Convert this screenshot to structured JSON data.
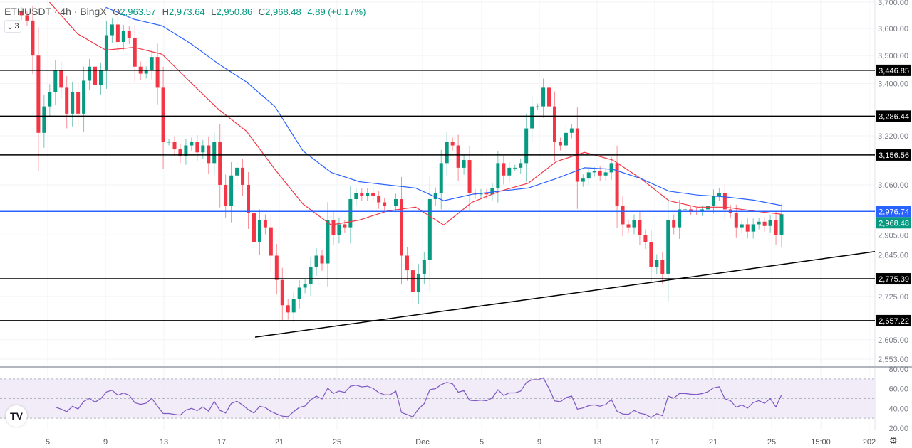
{
  "header": {
    "symbol": "ETHUSDT · 4h · BingX",
    "open_label": "O",
    "open": "2,963.57",
    "high_label": "H",
    "high": "2,973.64",
    "low_label": "L",
    "low": "2,950.86",
    "close_label": "C",
    "close": "2,968.48",
    "change": "4.89 (+0.17%)",
    "indicator_count": "3"
  },
  "colors": {
    "up": "#089981",
    "down": "#f23645",
    "ma_fast": "#f23645",
    "ma_slow": "#2962ff",
    "rsi": "#7e57c2",
    "rsi_band": "#ede7f6",
    "level": "#000000",
    "last_price": "#089981",
    "ma_price": "#2962ff"
  },
  "chart_data": {
    "type": "candlestick",
    "scale": "log",
    "ylim": [
      2553,
      3700
    ],
    "price_ticks": [
      "3,700.00",
      "3,600.00",
      "3,500.00",
      "3,400.00",
      "3,220.00",
      "3,060.00",
      "2,905.00",
      "2,845.00",
      "2,725.00",
      "2,605.00",
      "2,553.00"
    ],
    "price_tick_values": [
      3700,
      3600,
      3500,
      3400,
      3220,
      3060,
      2905,
      2845,
      2725,
      2605,
      2553
    ],
    "time_ticks": [
      "5",
      "9",
      "13",
      "17",
      "21",
      "25",
      "Dec",
      "5",
      "9",
      "13",
      "17",
      "21",
      "25",
      "15:00",
      "202"
    ],
    "closes": [
      3650,
      3630,
      3500,
      3230,
      3320,
      3370,
      3447,
      3385,
      3295,
      3370,
      3295,
      3410,
      3460,
      3395,
      3447,
      3575,
      3615,
      3550,
      3590,
      3565,
      3460,
      3435,
      3447,
      3495,
      3385,
      3200,
      3200,
      3175,
      3152,
      3188,
      3200,
      3165,
      3188,
      3130,
      3200,
      3060,
      2995,
      3090,
      3115,
      3060,
      2972,
      2884,
      2950,
      2928,
      2843,
      2772,
      2700,
      2680,
      2717,
      2750,
      2760,
      2810,
      2843,
      2820,
      2950,
      2905,
      2937,
      2928,
      3015,
      3035,
      3025,
      3035,
      3025,
      3005,
      2995,
      2995,
      3015,
      2843,
      2800,
      2738,
      2790,
      2830,
      3015,
      3035,
      3130,
      3200,
      3188,
      3115,
      3140,
      3035,
      3030,
      3035,
      3030,
      3050,
      3130,
      3090,
      3115,
      3115,
      3130,
      3245,
      3320,
      3320,
      3385,
      3320,
      3200,
      3188,
      3230,
      3245,
      3070,
      3080,
      3100,
      3105,
      3090,
      3100,
      3130,
      2995,
      2937,
      2928,
      2950,
      2905,
      2884,
      2810,
      2830,
      2790,
      2950,
      2928,
      2983,
      2983,
      2978,
      2977,
      2983,
      2995,
      3025,
      3035,
      2983,
      2972,
      2928,
      2937,
      2915,
      2937,
      2945,
      2932,
      2950,
      2905,
      2968
    ],
    "ma_fast": [
      null,
      3700,
      3580,
      3520,
      3530,
      3505,
      3405,
      3310,
      3235,
      3110,
      3000,
      2935,
      2950,
      2978,
      2990,
      2935,
      3005,
      3040,
      3065,
      3135,
      3165,
      3140,
      3080,
      3010,
      2990,
      2990,
      2978,
      2968
    ],
    "ma_slow": [
      null,
      null,
      null,
      3680,
      3635,
      3610,
      3545,
      3470,
      3405,
      3320,
      3170,
      3100,
      3070,
      3060,
      3050,
      3010,
      3030,
      3040,
      3050,
      3080,
      3115,
      3110,
      3080,
      3040,
      3028,
      3022,
      3012,
      2995
    ],
    "levels": [
      {
        "value": 3446.85,
        "label": "3,446.85"
      },
      {
        "value": 3286.44,
        "label": "3,286.44"
      },
      {
        "value": 3156.56,
        "label": "3,156.56"
      },
      {
        "value": 2775.39,
        "label": "2,775.39"
      },
      {
        "value": 2657.22,
        "label": "2,657.22"
      }
    ],
    "ma_price": {
      "value": 2976.74,
      "label": "2,976.74"
    },
    "last_price": {
      "value": 2968.48,
      "label": "2,968.48"
    },
    "trendline": {
      "start_price": 2612,
      "end_price": 2855
    },
    "rsi": {
      "ylim": [
        20,
        80
      ],
      "ticks": [
        "80.00",
        "60.00",
        "40.00",
        "20.00"
      ],
      "tick_values": [
        80,
        60,
        40,
        20
      ],
      "band": [
        30,
        70
      ],
      "mid": 50
    }
  }
}
